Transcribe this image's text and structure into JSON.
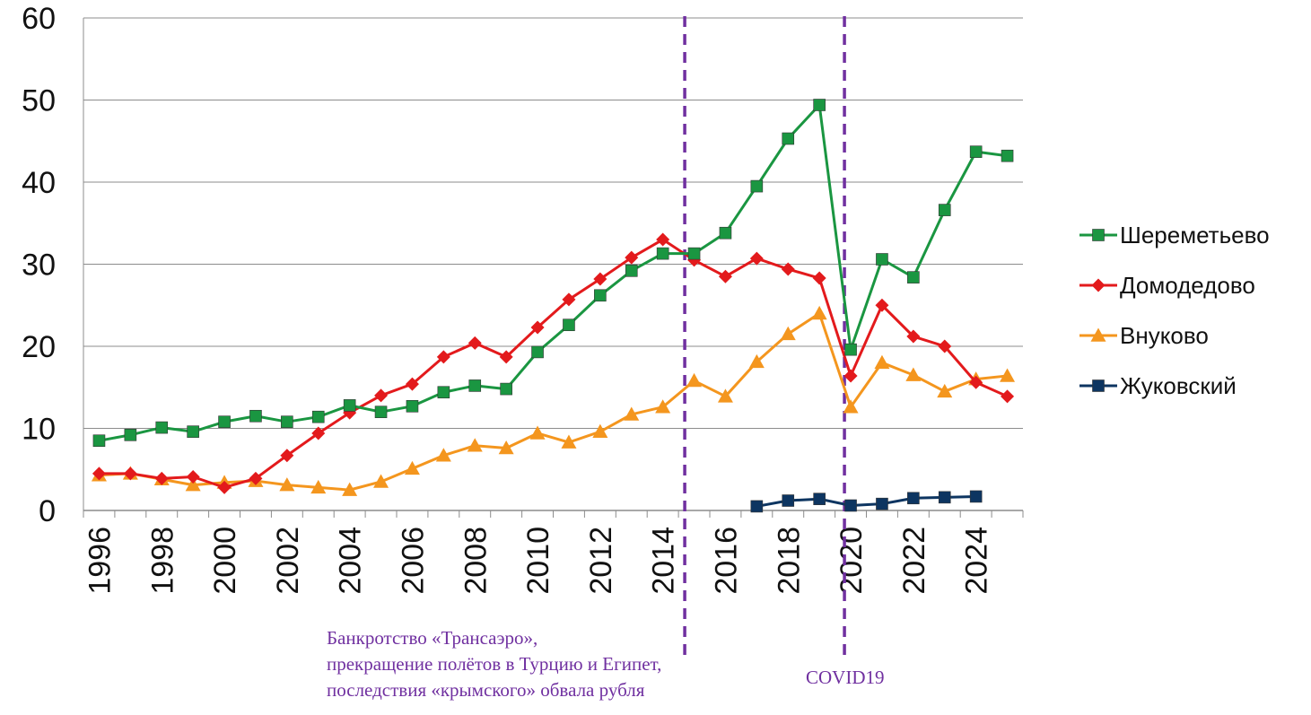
{
  "chart_data": {
    "type": "line",
    "x": [
      1996,
      1997,
      1998,
      1999,
      2000,
      2001,
      2002,
      2003,
      2004,
      2005,
      2006,
      2007,
      2008,
      2009,
      2010,
      2011,
      2012,
      2013,
      2014,
      2015,
      2016,
      2017,
      2018,
      2019,
      2020,
      2021,
      2022,
      2023,
      2024,
      2025
    ],
    "x_tick_labels": [
      "1996",
      "1998",
      "2000",
      "2002",
      "2004",
      "2006",
      "2008",
      "2010",
      "2012",
      "2014",
      "2016",
      "2018",
      "2020",
      "2022",
      "2024"
    ],
    "y_tick_labels": [
      "0",
      "10",
      "20",
      "30",
      "40",
      "50",
      "60"
    ],
    "ylim": [
      0,
      60
    ],
    "xlim": [
      1995.5,
      2025.5
    ],
    "grid": true,
    "legend_position": "right",
    "series": [
      {
        "name": "Шереметьево",
        "color": "#1a9641",
        "marker": "square",
        "values": [
          8.5,
          9.2,
          10.1,
          9.6,
          10.8,
          11.5,
          10.8,
          11.4,
          12.8,
          12.0,
          12.7,
          14.4,
          15.2,
          14.8,
          19.3,
          22.6,
          26.2,
          29.2,
          31.3,
          31.3,
          33.8,
          39.5,
          45.3,
          49.4,
          19.6,
          30.6,
          28.4,
          36.6,
          43.7,
          43.2
        ]
      },
      {
        "name": "Домодедово",
        "color": "#e31a1c",
        "marker": "diamond",
        "values": [
          4.5,
          4.5,
          3.9,
          4.1,
          2.8,
          3.9,
          6.7,
          9.4,
          11.9,
          14.0,
          15.4,
          18.7,
          20.4,
          18.7,
          22.3,
          25.7,
          28.2,
          30.8,
          33.0,
          30.5,
          28.5,
          30.7,
          29.4,
          28.3,
          16.4,
          25.0,
          21.2,
          20.0,
          15.6,
          13.9
        ]
      },
      {
        "name": "Внуково",
        "color": "#f4961e",
        "marker": "triangle",
        "values": [
          4.3,
          4.5,
          3.8,
          3.1,
          3.4,
          3.6,
          3.1,
          2.8,
          2.5,
          3.5,
          5.1,
          6.7,
          7.9,
          7.6,
          9.4,
          8.3,
          9.6,
          11.7,
          12.6,
          15.8,
          13.9,
          18.1,
          21.5,
          24.0,
          12.6,
          18.0,
          16.5,
          14.5,
          16.0,
          16.4
        ]
      },
      {
        "name": "Жуковский",
        "color": "#0d3561",
        "marker": "square",
        "x": [
          2017,
          2018,
          2019,
          2020,
          2021,
          2022,
          2023,
          2024
        ],
        "values": [
          0.5,
          1.2,
          1.4,
          0.6,
          0.8,
          1.5,
          1.6,
          1.7
        ]
      }
    ],
    "vlines": [
      {
        "x": 2014.7,
        "color": "#7030a0"
      },
      {
        "x": 2019.8,
        "color": "#7030a0"
      }
    ],
    "annotations": [
      {
        "lines": [
          "Банкротство «Трансаэро»,",
          "прекращение полётов в Турцию и Египет,",
          "последствия «крымского» обвала рубля"
        ]
      },
      {
        "lines": [
          "COVID19"
        ]
      }
    ]
  }
}
